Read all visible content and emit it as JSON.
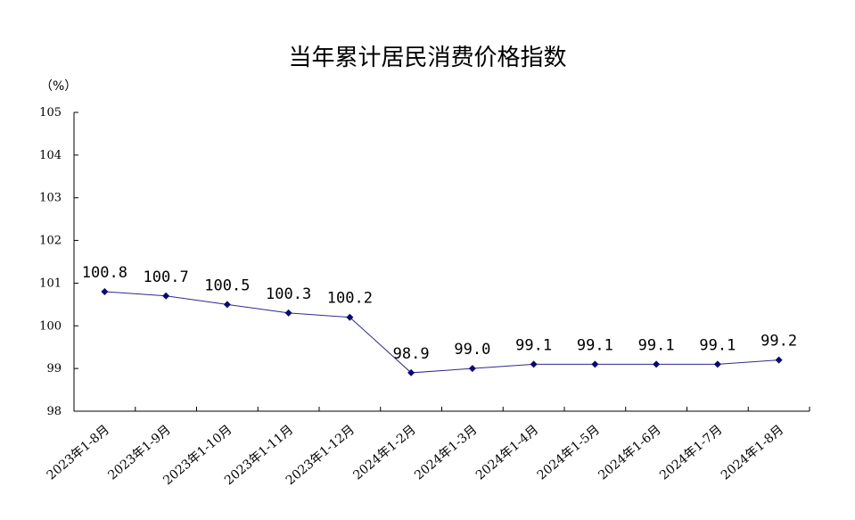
{
  "chart_data": {
    "type": "line",
    "title": "当年累计居民消费价格指数",
    "ylabel": "（%）",
    "xlabel": "",
    "categories": [
      "2023年1-8月",
      "2023年1-9月",
      "2023年1-10月",
      "2023年1-11月",
      "2023年1-12月",
      "2024年1-2月",
      "2024年1-3月",
      "2024年1-4月",
      "2024年1-5月",
      "2024年1-6月",
      "2024年1-7月",
      "2024年1-8月"
    ],
    "series": [
      {
        "values": [
          100.8,
          100.7,
          100.5,
          100.3,
          100.2,
          98.9,
          99.0,
          99.1,
          99.1,
          99.1,
          99.1,
          99.2
        ],
        "labels": [
          "100.8",
          "100.7",
          "100.5",
          "100.3",
          "100.2",
          "98.9",
          "99.0",
          "99.1",
          "99.1",
          "99.1",
          "99.1",
          "99.2"
        ]
      }
    ],
    "yticks": [
      "98",
      "99",
      "100",
      "101",
      "102",
      "103",
      "104",
      "105"
    ],
    "ylim": [
      98,
      105
    ],
    "grid": false,
    "legend": "none",
    "line_color": "#2e2a8c",
    "marker_color": "#0a0a6e"
  }
}
